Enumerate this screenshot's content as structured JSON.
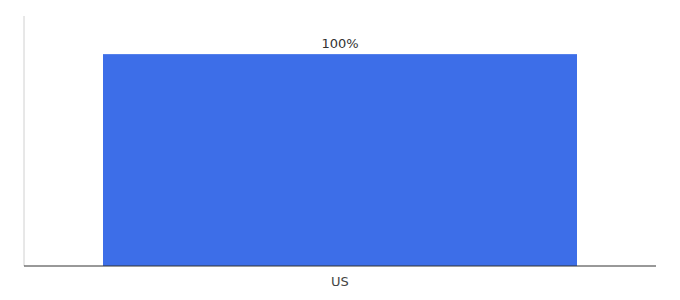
{
  "chart_data": {
    "type": "bar",
    "categories": [
      "US"
    ],
    "values": [
      100
    ],
    "value_labels": [
      "100%"
    ],
    "color": "#3d6ee8",
    "ylim": [
      0,
      118
    ],
    "data_labels": true,
    "tick_labels": "x"
  }
}
